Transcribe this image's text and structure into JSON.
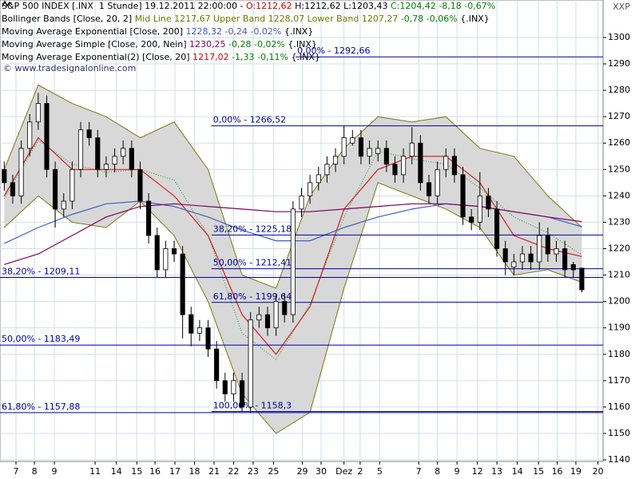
{
  "chart_data": {
    "type": "candlestick",
    "header_lines": [
      [
        {
          "text": "S&P 500 INDEX [.INX  1 Stunde] 19.12.2011 22:00:00 - ",
          "color": "#000000"
        },
        {
          "text": "O:1212,62",
          "color": "#d00000"
        },
        {
          "text": " H:1212,62 L:1203,43 ",
          "color": "#000000"
        },
        {
          "text": "C:1204,42 -8,18 -0,67%",
          "color": "#008000"
        }
      ],
      [
        {
          "text": "Bollinger Bands [Close, 20, 2] ",
          "color": "#000000"
        },
        {
          "text": "Mid Line 1217,67 Upper Band 1228,07 Lower Band 1207,27",
          "color": "#6b7a00"
        },
        {
          "text": " -0,78 -0,06%",
          "color": "#008000"
        },
        {
          "text": " {.INX}",
          "color": "#000000"
        }
      ],
      [
        {
          "text": "Moving Average Exponential [Close, 200] ",
          "color": "#000000"
        },
        {
          "text": "1228,32 -0,24 -0,02%",
          "color": "#4060c0"
        },
        {
          "text": " {.INX}",
          "color": "#000000"
        }
      ],
      [
        {
          "text": "Moving Average Simple [Close, 200, Nein] ",
          "color": "#000000"
        },
        {
          "text": "1230,25",
          "color": "#800060"
        },
        {
          "text": " -0,28 -0,02%",
          "color": "#008000"
        },
        {
          "text": " {.INX}",
          "color": "#000000"
        }
      ],
      [
        {
          "text": "Moving Average Exponential(2) [Close, 20] ",
          "color": "#000000"
        },
        {
          "text": "1217,02",
          "color": "#d00000"
        },
        {
          "text": " -1,33 -0,11%",
          "color": "#008000"
        },
        {
          "text": " {.INX}",
          "color": "#000000"
        }
      ]
    ],
    "watermark": "© www.tradesignalonline.com",
    "corner_label": "XXP",
    "xlim": [
      -0.5,
      70.5
    ],
    "xticks": [
      {
        "value": 1.38,
        "label": "7"
      },
      {
        "value": 3.55,
        "label": "8"
      },
      {
        "value": 5.9,
        "label": "9"
      },
      {
        "value": 10.7,
        "label": "11"
      },
      {
        "value": 13.2,
        "label": "14"
      },
      {
        "value": 15.6,
        "label": "15"
      },
      {
        "value": 17.75,
        "label": "16"
      },
      {
        "value": 20.1,
        "label": "17"
      },
      {
        "value": 22.4,
        "label": "18"
      },
      {
        "value": 24.7,
        "label": "21"
      },
      {
        "value": 27.0,
        "label": "22"
      },
      {
        "value": 29.3,
        "label": "23"
      },
      {
        "value": 31.7,
        "label": "25"
      },
      {
        "value": 35.1,
        "label": "29"
      },
      {
        "value": 37.3,
        "label": "30"
      },
      {
        "value": 40.0,
        "label": "Dez"
      },
      {
        "value": 41.9,
        "label": "2"
      },
      {
        "value": 44.2,
        "label": "5"
      },
      {
        "value": 48.8,
        "label": "7"
      },
      {
        "value": 51.0,
        "label": "8"
      },
      {
        "value": 53.3,
        "label": "9"
      },
      {
        "value": 55.7,
        "label": "12"
      },
      {
        "value": 58.0,
        "label": "13"
      },
      {
        "value": 60.4,
        "label": "14"
      },
      {
        "value": 62.9,
        "label": "15"
      },
      {
        "value": 65.1,
        "label": "16"
      },
      {
        "value": 67.3,
        "label": "19"
      },
      {
        "value": 69.9,
        "label": "20"
      }
    ],
    "ylim": [
      1139.4,
      1314.2
    ],
    "yticks": [
      1140,
      1150,
      1160,
      1170,
      1180,
      1190,
      1200,
      1210,
      1220,
      1230,
      1240,
      1250,
      1260,
      1270,
      1280,
      1290,
      1300
    ],
    "grid": true,
    "candles": {
      "up_color": "#ffffff",
      "down_color": "#000000",
      "open": [
        1250,
        1245,
        1240,
        1258,
        1268,
        1275,
        1250,
        1235,
        1238,
        1250,
        1265,
        1262,
        1250,
        1252,
        1255,
        1258,
        1250,
        1238,
        1225,
        1212,
        1220,
        1218,
        1195,
        1188,
        1190,
        1182,
        1170,
        1165,
        1170,
        1160,
        1193,
        1195,
        1190,
        1200,
        1195,
        1235,
        1240,
        1245,
        1248,
        1252,
        1255,
        1260,
        1262,
        1255,
        1256,
        1258,
        1252,
        1248,
        1255,
        1260,
        1245,
        1240,
        1250,
        1255,
        1248,
        1232,
        1230,
        1240,
        1235,
        1220,
        1213,
        1215,
        1218,
        1215,
        1225,
        1218,
        1220,
        1214,
        1212.62
      ],
      "high": [
        1253,
        1248,
        1261,
        1271,
        1279,
        1278,
        1253,
        1241,
        1253,
        1268,
        1268,
        1265,
        1255,
        1258,
        1261,
        1261,
        1253,
        1241,
        1228,
        1223,
        1223,
        1221,
        1198,
        1193,
        1193,
        1185,
        1173,
        1173,
        1173,
        1196,
        1198,
        1198,
        1203,
        1203,
        1238,
        1243,
        1248,
        1251,
        1255,
        1258,
        1266.5,
        1265,
        1265,
        1261,
        1261,
        1261,
        1255,
        1258,
        1266,
        1263,
        1248,
        1253,
        1258,
        1258,
        1251,
        1235,
        1249,
        1243,
        1238,
        1223,
        1218,
        1221,
        1221,
        1230,
        1228,
        1223,
        1223,
        1215,
        1212.62
      ],
      "low": [
        1242,
        1237,
        1237,
        1255,
        1265,
        1247,
        1228,
        1232,
        1235,
        1247,
        1259,
        1247,
        1247,
        1249,
        1252,
        1247,
        1235,
        1222,
        1209,
        1209,
        1215,
        1186,
        1183,
        1185,
        1179,
        1167,
        1162,
        1162,
        1158.3,
        1158,
        1190,
        1187,
        1187,
        1192,
        1192,
        1232,
        1237,
        1242,
        1245,
        1249,
        1252,
        1259,
        1252,
        1252,
        1253,
        1249,
        1245,
        1245,
        1252,
        1242,
        1237,
        1237,
        1247,
        1245,
        1229,
        1227,
        1227,
        1232,
        1217,
        1210,
        1210,
        1212,
        1212,
        1212,
        1215,
        1215,
        1209,
        1209,
        1203.43
      ],
      "close": [
        1245,
        1240,
        1258,
        1268,
        1275,
        1250,
        1235,
        1238,
        1250,
        1265,
        1262,
        1250,
        1252,
        1255,
        1258,
        1250,
        1238,
        1225,
        1212,
        1220,
        1218,
        1195,
        1188,
        1190,
        1182,
        1170,
        1165,
        1170,
        1160,
        1193,
        1195,
        1190,
        1200,
        1195,
        1235,
        1240,
        1245,
        1248,
        1252,
        1255,
        1262,
        1262,
        1255,
        1258,
        1258,
        1252,
        1248,
        1255,
        1260,
        1245,
        1240,
        1250,
        1255,
        1248,
        1232,
        1230,
        1240,
        1235,
        1220,
        1215,
        1215,
        1218,
        1215,
        1225,
        1218,
        1220,
        1212,
        1212,
        1204.42
      ]
    },
    "indicator_x": [
      0,
      4,
      8,
      12,
      16,
      20,
      24,
      28,
      32,
      36,
      40,
      44,
      48,
      52,
      56,
      60,
      64,
      68
    ],
    "bands": {
      "fill": "#d8d8d8",
      "color": "#7a7a10",
      "mid_color": "#2a8a2a",
      "upper": [
        1250,
        1282,
        1275,
        1270,
        1262,
        1268,
        1250,
        1210,
        1205,
        1240,
        1258,
        1270,
        1268,
        1270,
        1258,
        1255,
        1240,
        1228.07
      ],
      "lower": [
        1228,
        1240,
        1230,
        1228,
        1238,
        1225,
        1200,
        1165,
        1150,
        1158,
        1205,
        1245,
        1240,
        1235,
        1228,
        1210,
        1212,
        1207.27
      ],
      "mid": [
        1239,
        1261,
        1252,
        1249,
        1250,
        1246,
        1225,
        1188,
        1178,
        1199,
        1232,
        1257,
        1254,
        1252,
        1243,
        1232,
        1226,
        1217.67
      ]
    },
    "series": [
      {
        "color": "#d02020",
        "values": [
          1240,
          1262,
          1250,
          1250,
          1250,
          1240,
          1225,
          1195,
          1180,
          1198,
          1235,
          1250,
          1255,
          1255,
          1245,
          1225,
          1220,
          1217.02
        ]
      },
      {
        "color": "#4060c0",
        "values": [
          1222,
          1228,
          1233,
          1237,
          1238,
          1236,
          1232,
          1227,
          1223,
          1223,
          1228,
          1232,
          1235,
          1237,
          1236,
          1234,
          1232,
          1228.32
        ]
      },
      {
        "color": "#800060",
        "values": [
          1214,
          1218,
          1225,
          1232,
          1236,
          1237,
          1236,
          1235,
          1234,
          1234,
          1235,
          1236,
          1237,
          1237,
          1236,
          1234,
          1232,
          1230.25
        ]
      }
    ],
    "levels_color": "#0000a0",
    "levels": [
      {
        "label": "0,00% - 1266,52",
        "value": 1266.52,
        "from": 24.4
      },
      {
        "label": "38,20% - 1225,18",
        "value": 1225.18,
        "from": 24.4
      },
      {
        "label": "50,00% - 1212,41",
        "value": 1212.41,
        "from": 24.4
      },
      {
        "label": "61,80% - 1199,64",
        "value": 1199.64,
        "from": 24.4
      },
      {
        "label": "100,00% - 1158,3",
        "value": 1158.3,
        "from": 24.4
      },
      {
        "label": "38,20% - 1209,11",
        "value": 1209.11,
        "from": -0.5
      },
      {
        "label": "50,00% - 1183,49",
        "value": 1183.49,
        "from": -0.5
      },
      {
        "label": "61,80% - 1157,88",
        "value": 1157.88,
        "from": -0.5
      },
      {
        "label": "0,00% - 1292,66",
        "value": 1292.66,
        "from": 34.3
      }
    ]
  }
}
